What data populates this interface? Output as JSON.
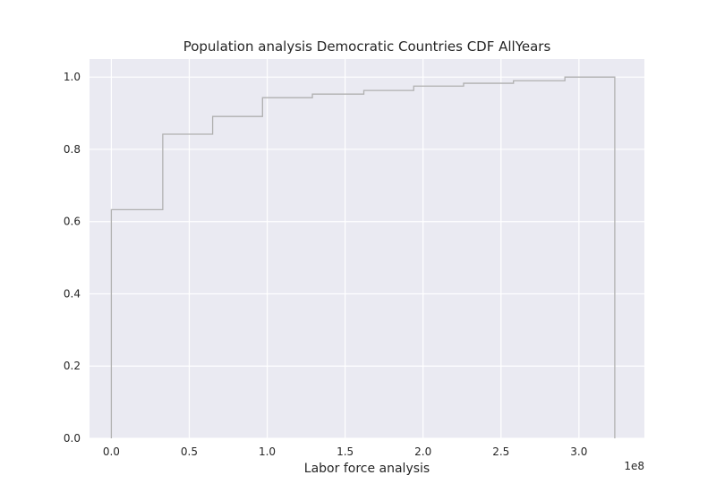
{
  "chart_data": {
    "type": "line",
    "step": true,
    "title": "Population analysis Democratic Countries CDF AllYears",
    "xlabel": "Labor force analysis",
    "ylabel": "",
    "x_offset_label": "1e8",
    "xlim": [
      -0.14,
      3.42
    ],
    "ylim": [
      0.0,
      1.05
    ],
    "x_ticks": [
      0.0,
      0.5,
      1.0,
      1.5,
      2.0,
      2.5,
      3.0
    ],
    "x_tick_labels": [
      "0.0",
      "0.5",
      "1.0",
      "1.5",
      "2.0",
      "2.5",
      "3.0"
    ],
    "y_ticks": [
      0.0,
      0.2,
      0.4,
      0.6,
      0.8,
      1.0
    ],
    "y_tick_labels": [
      "0.0",
      "0.2",
      "0.4",
      "0.6",
      "0.8",
      "1.0"
    ],
    "grid": true,
    "colors": {
      "background": "#eaeaf2",
      "grid": "#ffffff",
      "line": "#b0b0b0"
    },
    "series": [
      {
        "x": [
          0.0,
          0.0,
          0.33,
          0.65,
          0.97,
          1.29,
          1.62,
          1.94,
          2.26,
          2.58,
          2.91,
          3.23,
          3.23
        ],
        "y": [
          0.0,
          0.633,
          0.842,
          0.891,
          0.943,
          0.953,
          0.963,
          0.975,
          0.983,
          0.99,
          1.0,
          1.0,
          0.0
        ]
      }
    ]
  }
}
